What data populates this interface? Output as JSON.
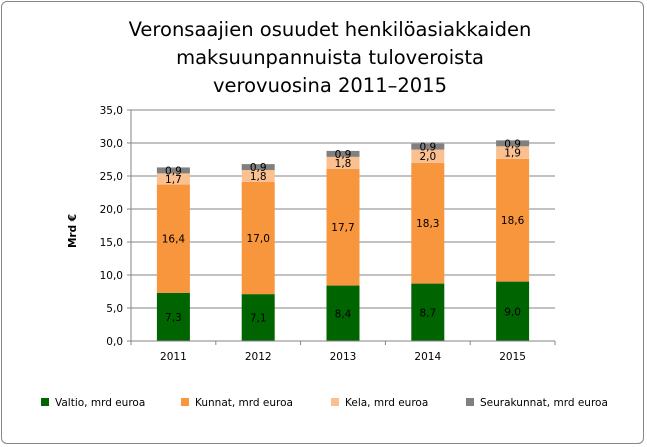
{
  "chart_data": {
    "type": "bar",
    "stacked": true,
    "title_lines": [
      "Veronsaajien osuudet henkilöasiakkaiden",
      "maksuunpannuista tuloveroista",
      "verovuosina 2011–2015"
    ],
    "xlabel": "",
    "ylabel": "Mrd €",
    "ylim": [
      0,
      35
    ],
    "ytick_step": 5,
    "ytick_labels": [
      "0,0",
      "5,0",
      "10,0",
      "15,0",
      "20,0",
      "25,0",
      "30,0",
      "35,0"
    ],
    "grid": true,
    "legend_position": "bottom",
    "categories": [
      "2011",
      "2012",
      "2013",
      "2014",
      "2015"
    ],
    "series": [
      {
        "name": "Valtio, mrd euroa",
        "color": "#006400",
        "values": [
          7.3,
          7.1,
          8.4,
          8.7,
          9.0
        ],
        "labels": [
          "7,3",
          "7,1",
          "8,4",
          "8,7",
          "9,0"
        ]
      },
      {
        "name": "Kunnat, mrd euroa",
        "color": "#F7963C",
        "values": [
          16.4,
          17.0,
          17.7,
          18.3,
          18.6
        ],
        "labels": [
          "16,4",
          "17,0",
          "17,7",
          "18,3",
          "18,6"
        ]
      },
      {
        "name": "Kela, mrd euroa",
        "color": "#FAC090",
        "values": [
          1.7,
          1.8,
          1.8,
          2.0,
          1.9
        ],
        "labels": [
          "1,7",
          "1,8",
          "1,8",
          "2,0",
          "1,9"
        ]
      },
      {
        "name": "Seurakunnat, mrd euroa",
        "color": "#808080",
        "values": [
          0.9,
          0.9,
          0.9,
          0.9,
          0.9
        ],
        "labels": [
          "0,9",
          "0,9",
          "0,9",
          "0,9",
          "0,9"
        ]
      }
    ]
  }
}
